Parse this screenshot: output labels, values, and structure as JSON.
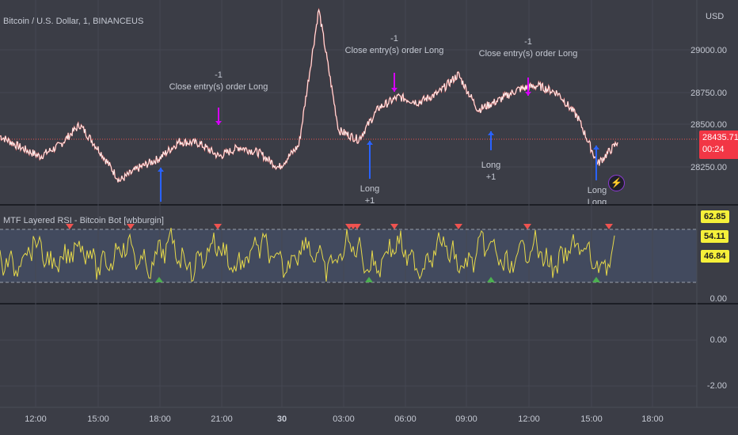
{
  "header": {
    "title": "Bitcoin / U.S. Dollar, 1, BINANCEUS",
    "currency": "USD"
  },
  "price_axis": {
    "labels": [
      "29000.00",
      "28750.00",
      "28500.00",
      "28250.00"
    ],
    "last_price": "28435.71",
    "countdown": "00:24"
  },
  "rsi_pane": {
    "title": "MTF Layered RSI - Bitcoin Bot [wbburgin]",
    "values": [
      "62.85",
      "54.11",
      "46.84"
    ],
    "axis_labels": [
      "0.00"
    ]
  },
  "lower_pane": {
    "axis_labels": [
      "0.00",
      "-2.00"
    ]
  },
  "time_axis": {
    "labels": [
      "12:00",
      "15:00",
      "18:00",
      "21:00",
      "30",
      "03:00",
      "06:00",
      "09:00",
      "12:00",
      "15:00",
      "18:00"
    ]
  },
  "annotations": {
    "close_1": {
      "line1": "-1",
      "line2": "Close entry(s) order Long"
    },
    "close_2": {
      "line1": "-1",
      "line2": "Close entry(s) order Long"
    },
    "close_3": {
      "line1": "-1",
      "line2": "Close entry(s) order Long"
    },
    "long_1": {
      "line1": "Long",
      "line2": "+1"
    },
    "long_2": {
      "line1": "Long",
      "line2": "+1"
    },
    "long_3": {
      "line1": "Long",
      "line2": "Long"
    }
  },
  "colors": {
    "background": "#3b3d46",
    "price_line": "#f2f2f2",
    "price_accent": "#ef5350",
    "rsi_line": "#e6d94a",
    "buy_arrow": "#2962ff",
    "sell_arrow": "#d500f9",
    "last_price_badge": "#f23645",
    "rsi_badge": "#f5f03a"
  },
  "chart_data": {
    "type": "line",
    "title": "Bitcoin / U.S. Dollar, 1, BINANCEUS",
    "ylabel": "USD",
    "ylim": [
      28100,
      29200
    ],
    "x": [
      "12:00",
      "13:00",
      "14:00",
      "15:00",
      "16:00",
      "17:00",
      "18:00",
      "19:00",
      "20:00",
      "21:00",
      "22:00",
      "23:00",
      "00:00",
      "01:00",
      "02:00",
      "03:00",
      "03:20",
      "03:40",
      "04:00",
      "05:00",
      "06:00",
      "07:00",
      "08:00",
      "09:00",
      "10:00",
      "11:00",
      "12:00",
      "13:00",
      "14:00",
      "15:00",
      "15:20",
      "15:40"
    ],
    "series": [
      {
        "values": [
          28470,
          28410,
          28360,
          28420,
          28530,
          28390,
          28230,
          28300,
          28350,
          28440,
          28430,
          28360,
          28410,
          28380,
          28300,
          28420,
          29150,
          28500,
          28450,
          28620,
          28680,
          28650,
          28700,
          28800,
          28610,
          28660,
          28720,
          28740,
          28700,
          28570,
          28320,
          28435
        ]
      }
    ]
  }
}
